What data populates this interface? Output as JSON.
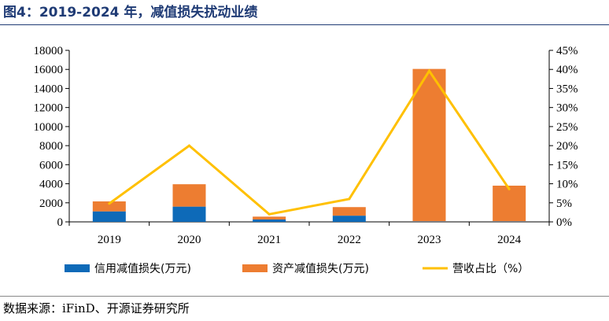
{
  "title": "图4：2019-2024 年，减值损失扰动业绩",
  "source": "数据来源：iFinD、开源证券研究所",
  "colors": {
    "credit": "#0e6ab8",
    "asset": "#ed7d31",
    "ratio": "#ffc000",
    "title": "#1f3b75"
  },
  "chart_data": {
    "type": "bar",
    "stacked": true,
    "categories": [
      "2019",
      "2020",
      "2021",
      "2022",
      "2023",
      "2024"
    ],
    "series": [
      {
        "name": "信用减值损失(万元)",
        "type": "bar",
        "axis": "left",
        "values": [
          1100,
          1600,
          250,
          650,
          50,
          50
        ]
      },
      {
        "name": "资产减值损失(万元)",
        "type": "bar",
        "axis": "left",
        "values": [
          1050,
          2350,
          300,
          900,
          16000,
          3750
        ]
      },
      {
        "name": "营收占比（%）",
        "type": "line",
        "axis": "right",
        "values": [
          4.8,
          20,
          2,
          6,
          39.6,
          8.6
        ]
      }
    ],
    "y_left": {
      "min": 0,
      "max": 18000,
      "step": 2000,
      "ticks": [
        "0",
        "2000",
        "4000",
        "6000",
        "8000",
        "10000",
        "12000",
        "14000",
        "16000",
        "18000"
      ]
    },
    "y_right": {
      "min": 0,
      "max": 45,
      "step": 5,
      "ticks": [
        "0%",
        "5%",
        "10%",
        "15%",
        "20%",
        "25%",
        "30%",
        "35%",
        "40%",
        "45%"
      ]
    },
    "grid": false,
    "legend_position": "bottom"
  }
}
